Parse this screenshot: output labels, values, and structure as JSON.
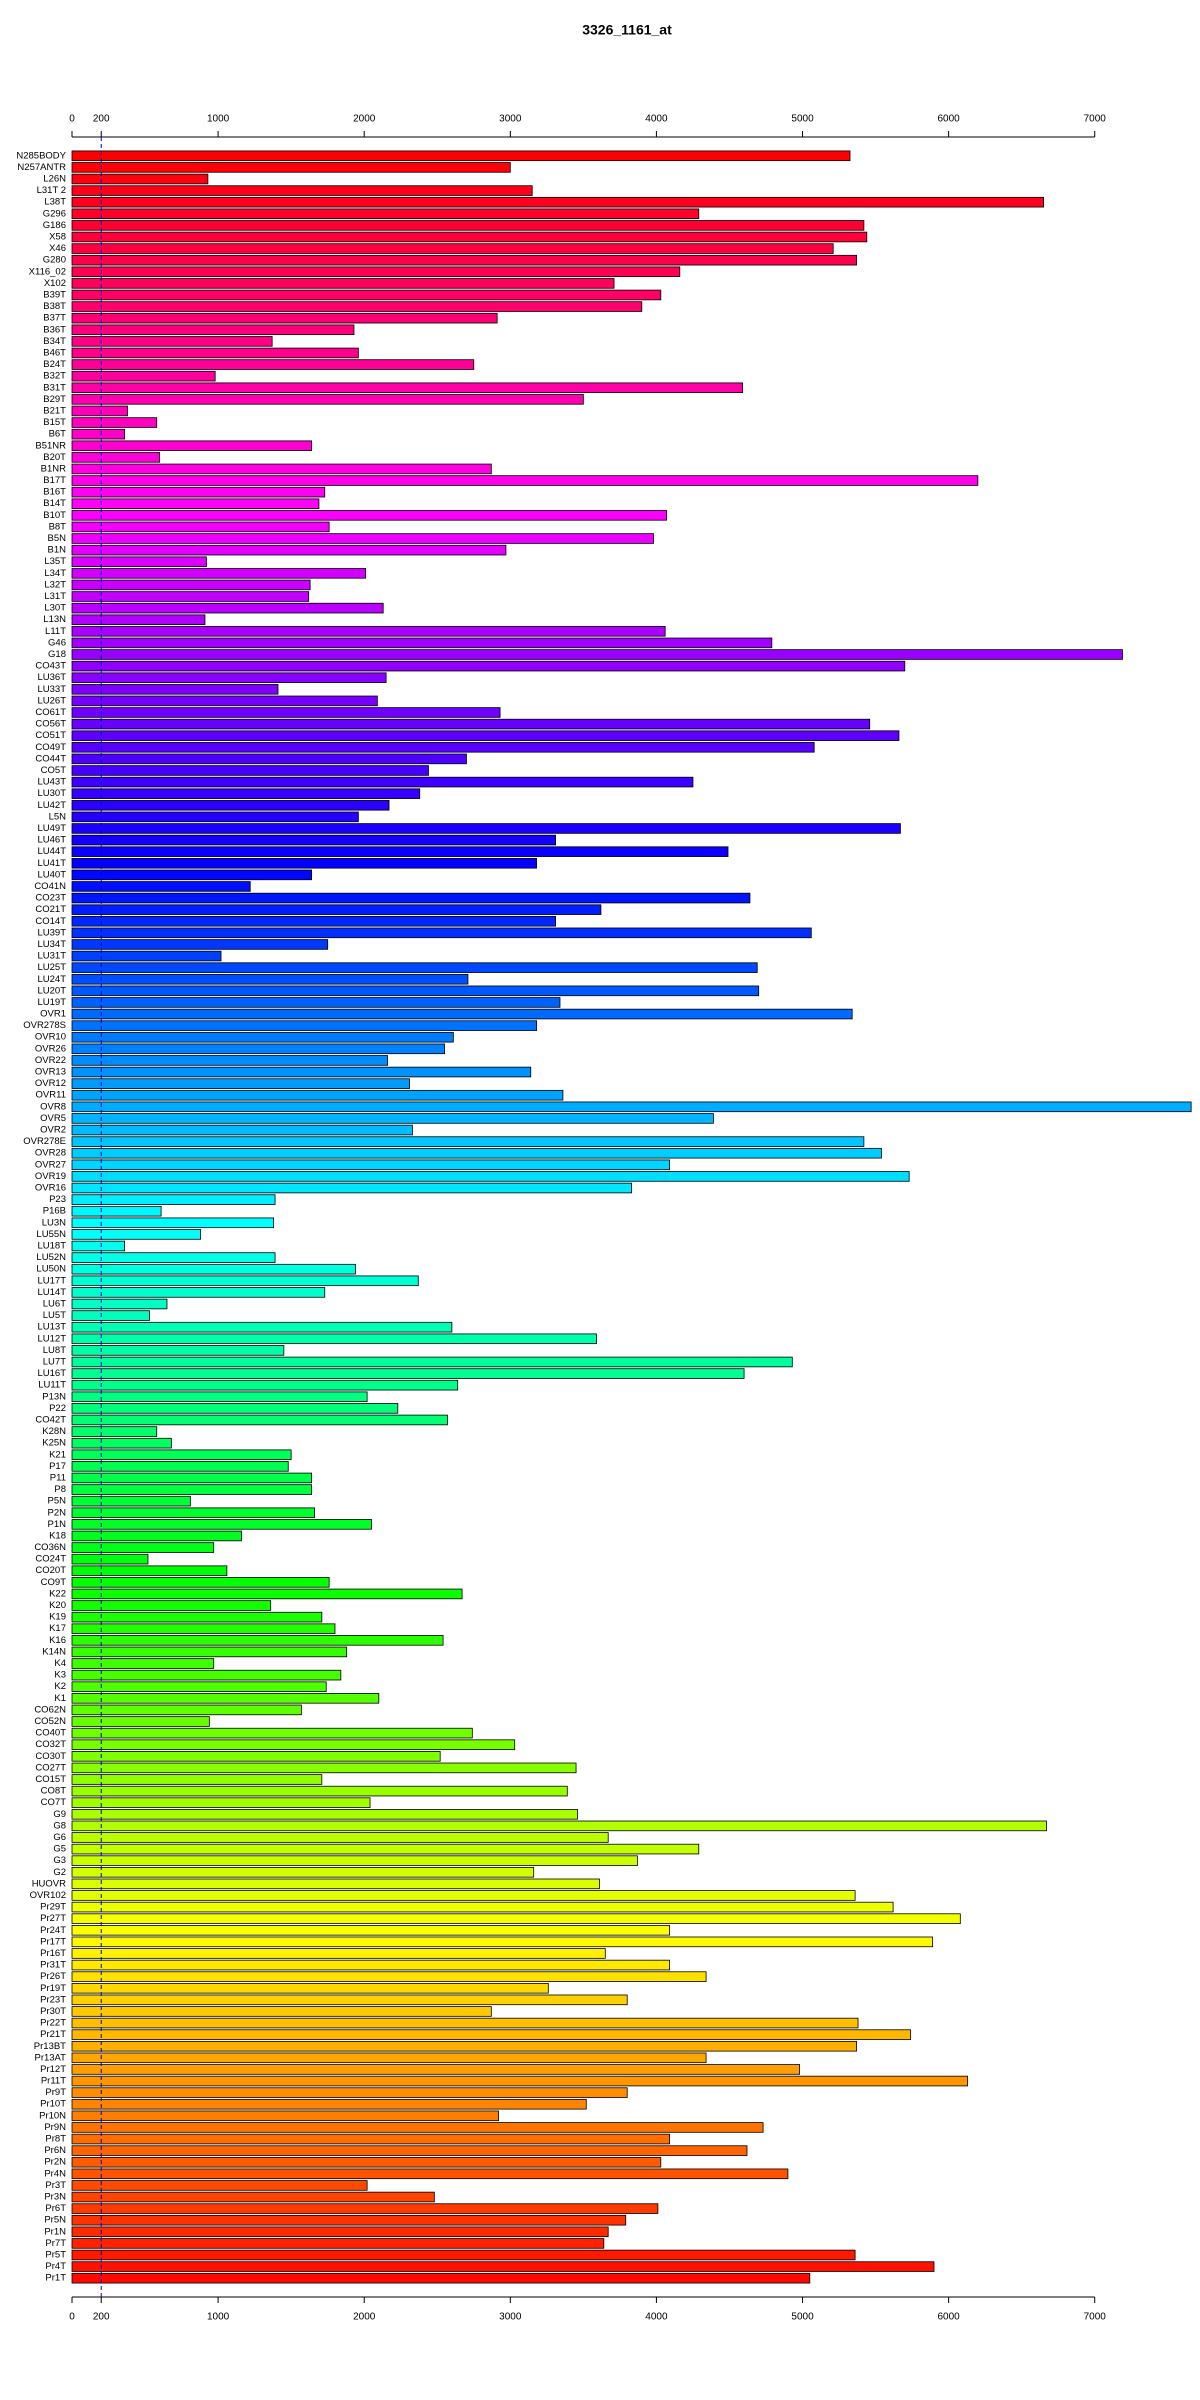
{
  "chart_data": {
    "type": "barh",
    "title": "3326_1161_at",
    "categories": [
      "N285BODY",
      "N257ANTR",
      "L26N",
      "L31T 2",
      "L38T",
      "G296",
      "G186",
      "X58",
      "X46",
      "G280",
      "X116_02",
      "X102",
      "B39T",
      "B38T",
      "B37T",
      "B36T",
      "B34T",
      "B46T",
      "B24T",
      "B32T",
      "B31T",
      "B29T",
      "B21T",
      "B15T",
      "B6T",
      "B51NR",
      "B20T",
      "B1NR",
      "B17T",
      "B16T",
      "B14T",
      "B10T",
      "B8T",
      "B5N",
      "B1N",
      "L35T",
      "L34T",
      "L32T",
      "L31T",
      "L30T",
      "L13N",
      "L11T",
      "G46",
      "G18",
      "CO43T",
      "LU36T",
      "LU33T",
      "LU26T",
      "CO61T",
      "CO56T",
      "CO51T",
      "CO49T",
      "CO44T",
      "CO5T",
      "LU43T",
      "LU30T",
      "LU42T",
      "L5N",
      "LU49T",
      "LU46T",
      "LU44T",
      "LU41T",
      "LU40T",
      "CO41N",
      "CO23T",
      "CO21T",
      "CO14T",
      "LU39T",
      "LU34T",
      "LU31T",
      "LU25T",
      "LU24T",
      "LU20T",
      "LU19T",
      "OVR1",
      "OVR278S",
      "OVR10",
      "OVR26",
      "OVR22",
      "OVR13",
      "OVR12",
      "OVR11",
      "OVR8",
      "OVR5",
      "OVR2",
      "OVR278E",
      "OVR28",
      "OVR27",
      "OVR19",
      "OVR16",
      "P23",
      "P16B",
      "LU3N",
      "LU55N",
      "LU18T",
      "LU52N",
      "LU50N",
      "LU17T",
      "LU14T",
      "LU6T",
      "LU5T",
      "LU13T",
      "LU12T",
      "LU8T",
      "LU7T",
      "LU16T",
      "LU11T",
      "P13N",
      "P22",
      "CO42T",
      "K28N",
      "K25N",
      "K21",
      "P17",
      "P11",
      "P8",
      "P5N",
      "P2N",
      "P1N",
      "K18",
      "CO36N",
      "CO24T",
      "CO20T",
      "CO9T",
      "K22",
      "K20",
      "K19",
      "K17",
      "K16",
      "K14N",
      "K4",
      "K3",
      "K2",
      "K1",
      "CO62N",
      "CO52N",
      "CO40T",
      "CO32T",
      "CO30T",
      "CO27T",
      "CO15T",
      "CO8T",
      "CO7T",
      "G9",
      "G8",
      "G6",
      "G5",
      "G3",
      "G2",
      "HUOVR",
      "OVR102",
      "Pr29T",
      "Pr27T",
      "Pr24T",
      "Pr17T",
      "Pr16T",
      "Pr31T",
      "Pr26T",
      "Pr19T",
      "Pr23T",
      "Pr30T",
      "Pr22T",
      "Pr21T",
      "Pr13BT",
      "Pr13AT",
      "Pr12T",
      "Pr11T",
      "Pr9T",
      "Pr10T",
      "Pr10N",
      "Pr9N",
      "Pr8T",
      "Pr6N",
      "Pr2N",
      "Pr4N",
      "Pr3T",
      "Pr3N",
      "Pr6T",
      "Pr5N",
      "Pr1N",
      "Pr7T",
      "Pr5T",
      "Pr4T",
      "Pr1T"
    ],
    "values": [
      5325,
      3000,
      930,
      3150,
      6650,
      4290,
      5420,
      5440,
      5210,
      5370,
      4160,
      3710,
      4030,
      3900,
      2910,
      1930,
      1370,
      1960,
      2750,
      980,
      4590,
      3500,
      380,
      580,
      360,
      1640,
      600,
      2870,
      6200,
      1730,
      1690,
      4070,
      1760,
      3980,
      2970,
      920,
      2010,
      1630,
      1620,
      2130,
      910,
      4060,
      4790,
      7190,
      5700,
      2150,
      1410,
      2090,
      2930,
      5460,
      5660,
      5080,
      2700,
      2440,
      4250,
      2380,
      2170,
      1960,
      5670,
      3310,
      4490,
      3180,
      1640,
      1220,
      4640,
      3620,
      3310,
      5060,
      1750,
      1020,
      4690,
      2710,
      4700,
      3340,
      5340,
      3180,
      2610,
      2550,
      2160,
      3140,
      2310,
      3360,
      7660,
      4390,
      2330,
      5420,
      5540,
      4090,
      5730,
      3830,
      1390,
      610,
      1380,
      880,
      360,
      1390,
      1940,
      2370,
      1730,
      650,
      530,
      2600,
      3590,
      1450,
      4930,
      4600,
      2640,
      2020,
      2230,
      2570,
      580,
      680,
      1500,
      1480,
      1640,
      1640,
      810,
      1660,
      2050,
      1160,
      970,
      520,
      1060,
      1760,
      2670,
      1360,
      1710,
      1800,
      2540,
      1880,
      970,
      1840,
      1740,
      2100,
      1570,
      940,
      2740,
      3030,
      2520,
      3450,
      1710,
      3390,
      2040,
      3460,
      6670,
      3670,
      4290,
      3870,
      3160,
      3610,
      5360,
      5620,
      6080,
      4090,
      5890,
      3650,
      4090,
      4340,
      3260,
      3800,
      2870,
      5380,
      5740,
      5370,
      4340,
      4980,
      6130,
      3800,
      3520,
      2920,
      4730,
      4090,
      4620,
      4030,
      4900,
      2020,
      2480,
      4010,
      3790,
      3670,
      3640,
      5360,
      5900,
      5050
    ],
    "palette": "rainbow-reverse",
    "xlim": [
      0,
      7700
    ],
    "xticks": [
      0,
      200,
      1000,
      2000,
      3000,
      4000,
      5000,
      6000,
      7000
    ],
    "reference_line": 200
  }
}
